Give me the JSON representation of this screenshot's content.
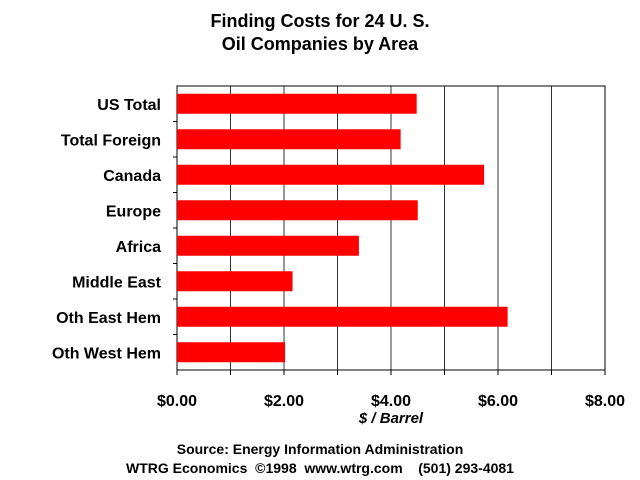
{
  "chart_data": {
    "type": "bar",
    "orientation": "horizontal",
    "title_lines": [
      "Finding Costs for 24 U. S.",
      "Oil Companies by Area"
    ],
    "categories": [
      "US Total",
      "Total Foreign",
      "Canada",
      "Europe",
      "Africa",
      "Middle East",
      "Oth East Hem",
      "Oth West Hem"
    ],
    "values": [
      4.48,
      4.18,
      5.74,
      4.5,
      3.4,
      2.16,
      6.18,
      2.02
    ],
    "xlabel": "$ / Barrel",
    "xlim": [
      0,
      8
    ],
    "x_ticks": [
      "$0.00",
      "$2.00",
      "$4.00",
      "$6.00",
      "$8.00"
    ],
    "grid": true,
    "bar_color": "#ff0000"
  },
  "footer": {
    "source": "Source: Energy Information Administration",
    "credit": "WTRG Economics  ©1998  www.wtrg.com    (501) 293-4081"
  }
}
